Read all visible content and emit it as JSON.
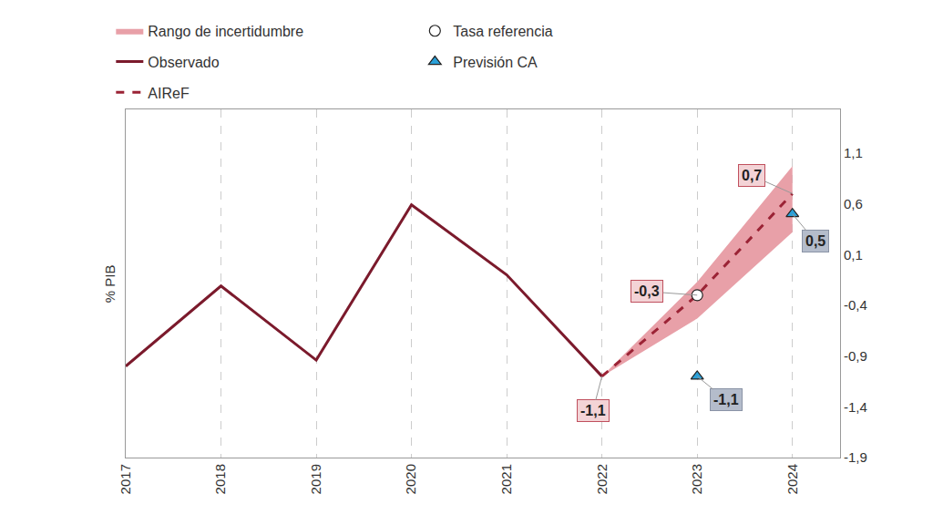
{
  "chart_data": {
    "type": "line",
    "y_label": "% PIB",
    "xlim": [
      2017,
      2024.5
    ],
    "xticks": [
      2017,
      2018,
      2019,
      2020,
      2021,
      2022,
      2023,
      2024
    ],
    "ylim": [
      -1.9,
      1.53
    ],
    "yticks": [
      {
        "value": 1.1,
        "label": "1,1"
      },
      {
        "value": 0.6,
        "label": "0,6"
      },
      {
        "value": 0.1,
        "label": "0,1"
      },
      {
        "value": -0.4,
        "label": "-0,4"
      },
      {
        "value": -0.9,
        "label": "-0,9"
      },
      {
        "value": -1.4,
        "label": "-1,4"
      },
      {
        "value": -1.9,
        "label": "-1,9"
      }
    ],
    "grid": "x",
    "legend": "top",
    "series": [
      {
        "name": "Rango de incertidumbre",
        "type": "band",
        "color": "#e8a0a8",
        "x": [
          2022,
          2023,
          2024
        ],
        "upper": [
          -1.1,
          -0.17,
          0.97
        ],
        "lower": [
          -1.1,
          -0.53,
          0.32
        ]
      },
      {
        "name": "Tasa referencia",
        "type": "scatter",
        "marker": "circle",
        "color": "#ffffff",
        "x": [
          2023
        ],
        "values": [
          -0.3
        ]
      },
      {
        "name": "Observado",
        "type": "line",
        "line_style": "solid",
        "color": "#7b1a2c",
        "x": [
          2017,
          2018,
          2019,
          2020,
          2021,
          2022
        ],
        "values": [
          -1.0,
          -0.21,
          -0.94,
          0.59,
          -0.1,
          -1.1
        ]
      },
      {
        "name": "Previsión CA",
        "type": "scatter",
        "marker": "triangle-up",
        "color": "#2aa0d8",
        "x": [
          2023,
          2024
        ],
        "values": [
          -1.1,
          0.5
        ],
        "data_labels": true,
        "value_labels": [
          "-1,1",
          "0,5"
        ]
      },
      {
        "name": "AIReF",
        "type": "line",
        "line_style": "dash",
        "color": "#9b2335",
        "x": [
          2022,
          2023,
          2024
        ],
        "values": [
          -1.1,
          -0.3,
          0.7
        ],
        "data_labels": true,
        "value_labels": [
          "-1,1",
          "-0,3",
          "0,7"
        ]
      }
    ]
  }
}
